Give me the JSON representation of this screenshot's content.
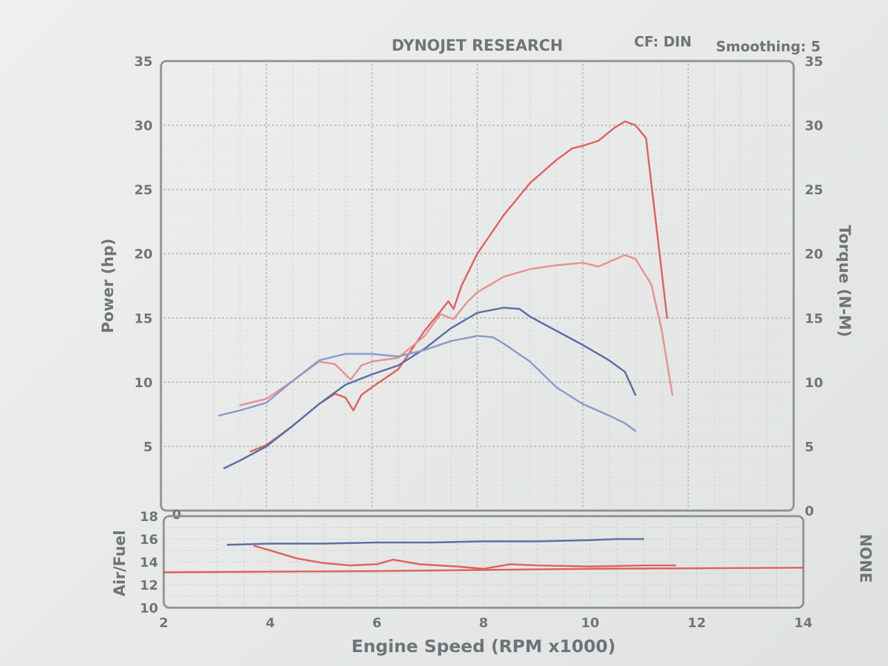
{
  "header": {
    "brand": "DYNOJET RESEARCH",
    "cf": "CF: DIN",
    "smoothing": "Smoothing: 5"
  },
  "chart_data": [
    {
      "type": "line",
      "xlabel": "Engine Speed (RPM x1000)",
      "ylabel": "Power (hp)",
      "y2label": "Torque (N-M)",
      "xlim": [
        2,
        14
      ],
      "ylim": [
        0,
        35
      ],
      "y2lim": [
        0,
        35
      ],
      "x_ticks": [
        2,
        4,
        6,
        8,
        10,
        12,
        14
      ],
      "y_ticks": [
        5,
        10,
        15,
        20,
        25,
        30,
        35
      ],
      "y2_ticks": [
        0,
        5,
        10,
        15,
        20,
        25,
        30,
        35
      ],
      "y_tick_zero": "0",
      "grid": true,
      "series": [
        {
          "role": "power",
          "axis": "left",
          "color": "#e2605e",
          "x": [
            3.7,
            4.0,
            4.5,
            5.0,
            5.3,
            5.5,
            5.65,
            5.8,
            6.0,
            6.5,
            7.0,
            7.3,
            7.45,
            7.55,
            7.7,
            8.0,
            8.5,
            9.0,
            9.5,
            9.8,
            10.0,
            10.3,
            10.6,
            10.8,
            11.0,
            11.2,
            11.4,
            11.6
          ],
          "y": [
            4.6,
            5.1,
            6.6,
            8.3,
            9.1,
            8.8,
            7.8,
            9.0,
            9.6,
            11.0,
            14.0,
            15.5,
            16.3,
            15.7,
            17.5,
            20.0,
            23.0,
            25.5,
            27.3,
            28.2,
            28.4,
            28.8,
            29.8,
            30.3,
            30.0,
            29.0,
            22.0,
            15.0
          ]
        },
        {
          "role": "power",
          "axis": "left",
          "color": "#5b6ea6",
          "x": [
            3.2,
            3.5,
            4.0,
            4.5,
            5.0,
            5.5,
            6.0,
            6.5,
            7.0,
            7.5,
            8.0,
            8.5,
            8.8,
            9.0,
            9.5,
            10.0,
            10.5,
            10.8,
            11.0
          ],
          "y": [
            3.3,
            3.9,
            5.0,
            6.6,
            8.3,
            9.8,
            10.6,
            11.3,
            12.6,
            14.2,
            15.4,
            15.8,
            15.7,
            15.1,
            14.0,
            12.9,
            11.7,
            10.8,
            9.0
          ]
        },
        {
          "role": "torque",
          "axis": "right",
          "color": "#e9928f",
          "x": [
            3.5,
            4.0,
            4.5,
            5.0,
            5.3,
            5.6,
            5.8,
            6.0,
            6.5,
            7.0,
            7.3,
            7.55,
            7.8,
            8.0,
            8.5,
            9.0,
            9.5,
            10.0,
            10.3,
            10.8,
            11.0,
            11.3,
            11.5,
            11.7
          ],
          "y": [
            8.2,
            8.7,
            10.1,
            11.6,
            11.4,
            10.2,
            11.3,
            11.6,
            11.9,
            13.6,
            15.3,
            14.9,
            16.2,
            17.0,
            18.2,
            18.8,
            19.1,
            19.3,
            19.0,
            19.9,
            19.6,
            17.6,
            14.0,
            9.0
          ]
        },
        {
          "role": "torque",
          "axis": "right",
          "color": "#8d9acb",
          "x": [
            3.1,
            3.5,
            4.0,
            4.5,
            5.0,
            5.5,
            6.0,
            6.5,
            7.0,
            7.5,
            8.0,
            8.3,
            8.5,
            9.0,
            9.5,
            10.0,
            10.5,
            10.8,
            11.0
          ],
          "y": [
            7.4,
            7.8,
            8.4,
            10.1,
            11.7,
            12.2,
            12.2,
            12.0,
            12.5,
            13.2,
            13.6,
            13.5,
            13.0,
            11.6,
            9.6,
            8.3,
            7.4,
            6.8,
            6.2
          ]
        }
      ]
    },
    {
      "type": "line",
      "ylabel": "Air/Fuel",
      "y2label": "NONE",
      "xlim": [
        2,
        14
      ],
      "ylim": [
        10,
        18
      ],
      "y_ticks": [
        10,
        12,
        14,
        16,
        18
      ],
      "grid": true,
      "series": [
        {
          "role": "afr",
          "color": "#5b6ea6",
          "x": [
            3.2,
            4.0,
            5.0,
            6.0,
            7.0,
            8.0,
            9.0,
            10.0,
            10.5,
            11.0
          ],
          "y": [
            15.5,
            15.6,
            15.6,
            15.7,
            15.7,
            15.8,
            15.8,
            15.9,
            16.0,
            16.0
          ]
        },
        {
          "role": "afr",
          "color": "#e2605e",
          "x": [
            3.7,
            4.0,
            4.5,
            5.0,
            5.5,
            6.0,
            6.3,
            6.8,
            7.5,
            8.0,
            8.5,
            9.0,
            10.0,
            11.0,
            11.6
          ],
          "y": [
            15.4,
            15.0,
            14.3,
            13.9,
            13.7,
            13.8,
            14.2,
            13.8,
            13.6,
            13.4,
            13.8,
            13.7,
            13.6,
            13.7,
            13.7
          ]
        },
        {
          "role": "afr-reference",
          "color": "#e2605e",
          "x": [
            2.0,
            6.0,
            10.0,
            14.0
          ],
          "y": [
            13.1,
            13.2,
            13.4,
            13.5
          ]
        }
      ]
    }
  ]
}
